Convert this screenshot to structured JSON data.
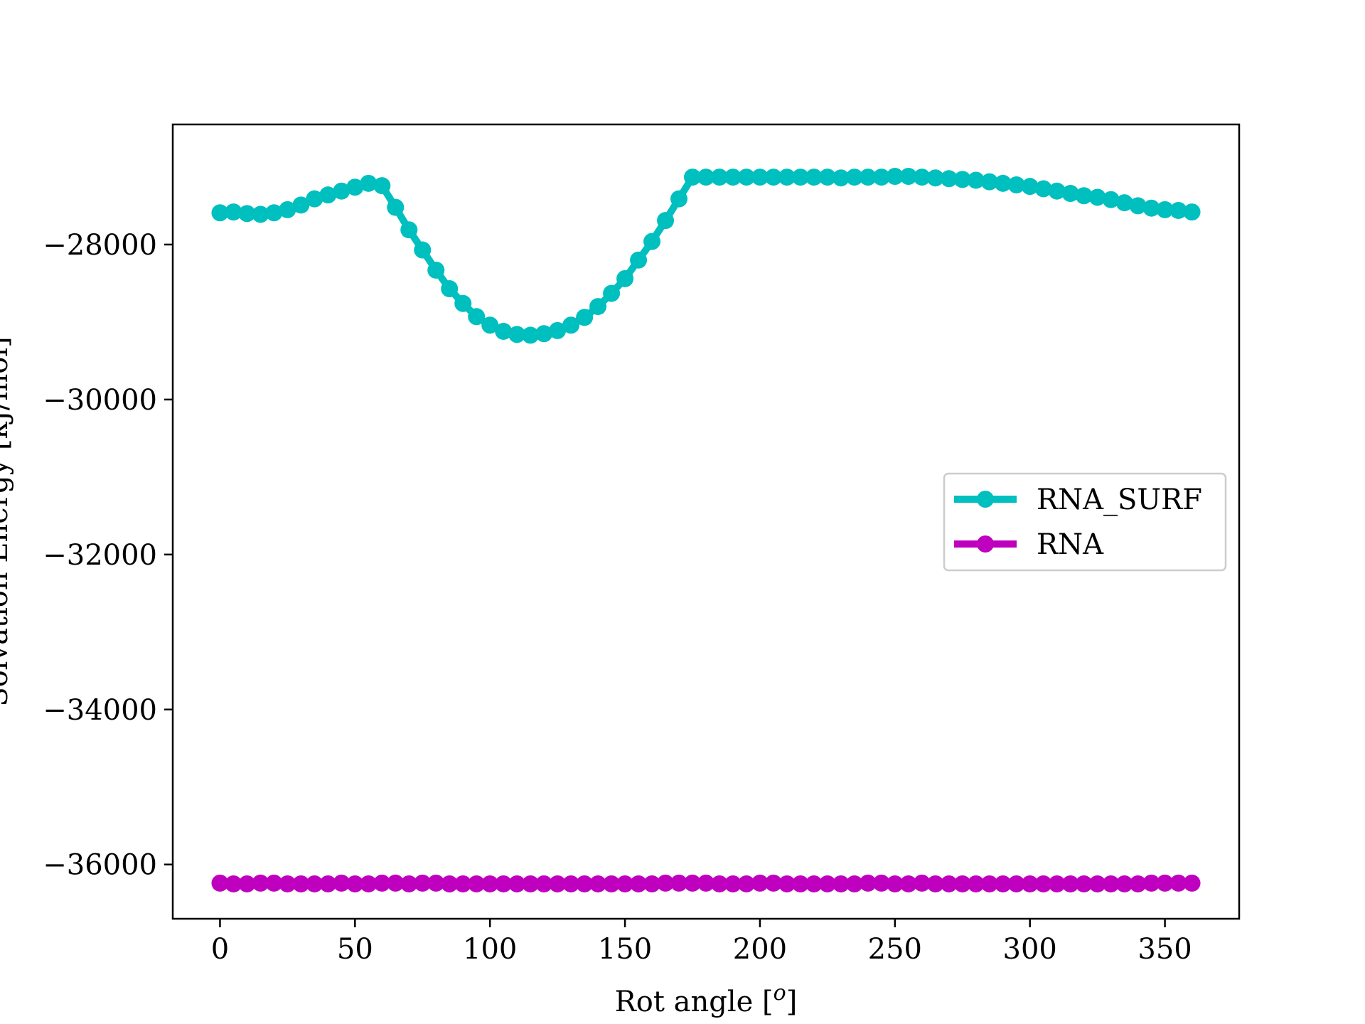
{
  "chart_data": {
    "type": "line",
    "title": "",
    "xlabel": "Rot angle [$^o$]",
    "xlabel_display": "Rot angle [o]",
    "ylabel": "Solvation Energy [kJ/mol]",
    "xlim": [
      -17.5,
      377.5
    ],
    "ylim": [
      -36700,
      -26450
    ],
    "xticks": [
      0,
      50,
      100,
      150,
      200,
      250,
      300,
      350
    ],
    "xtick_labels": [
      "0",
      "50",
      "100",
      "150",
      "200",
      "250",
      "300",
      "350"
    ],
    "yticks": [
      -28000,
      -30000,
      -32000,
      -34000,
      -36000
    ],
    "ytick_labels": [
      "−28000",
      "−30000",
      "−32000",
      "−34000",
      "−36000"
    ],
    "grid": false,
    "legend_position": "center-right",
    "x": [
      0,
      5,
      10,
      15,
      20,
      25,
      30,
      35,
      40,
      45,
      50,
      55,
      60,
      65,
      70,
      75,
      80,
      85,
      90,
      95,
      100,
      105,
      110,
      115,
      120,
      125,
      130,
      135,
      140,
      145,
      150,
      155,
      160,
      165,
      170,
      175,
      180,
      185,
      190,
      195,
      200,
      205,
      210,
      215,
      220,
      225,
      230,
      235,
      240,
      245,
      250,
      255,
      260,
      265,
      270,
      275,
      280,
      285,
      290,
      295,
      300,
      305,
      310,
      315,
      320,
      325,
      330,
      335,
      340,
      345,
      350,
      355,
      360
    ],
    "series": [
      {
        "name": "RNA_SURF",
        "color": "#00bfbf",
        "values": [
          -27590,
          -27580,
          -27600,
          -27610,
          -27590,
          -27550,
          -27490,
          -27410,
          -27360,
          -27310,
          -27260,
          -27210,
          -27240,
          -27520,
          -27810,
          -28070,
          -28330,
          -28570,
          -28760,
          -28930,
          -29040,
          -29120,
          -29160,
          -29170,
          -29150,
          -29110,
          -29040,
          -28940,
          -28800,
          -28630,
          -28440,
          -28200,
          -27960,
          -27690,
          -27410,
          -27130,
          -27130,
          -27130,
          -27130,
          -27130,
          -27130,
          -27130,
          -27130,
          -27130,
          -27130,
          -27130,
          -27140,
          -27130,
          -27130,
          -27130,
          -27120,
          -27120,
          -27130,
          -27140,
          -27150,
          -27160,
          -27170,
          -27190,
          -27210,
          -27230,
          -27250,
          -27280,
          -27310,
          -27340,
          -27370,
          -27390,
          -27420,
          -27460,
          -27500,
          -27530,
          -27550,
          -27560,
          -27580
        ]
      },
      {
        "name": "RNA",
        "color": "#bf00bf",
        "values": [
          -36240,
          -36250,
          -36250,
          -36240,
          -36240,
          -36250,
          -36250,
          -36250,
          -36250,
          -36240,
          -36250,
          -36250,
          -36240,
          -36240,
          -36250,
          -36240,
          -36240,
          -36250,
          -36250,
          -36250,
          -36250,
          -36250,
          -36250,
          -36250,
          -36250,
          -36250,
          -36250,
          -36250,
          -36250,
          -36250,
          -36250,
          -36250,
          -36250,
          -36240,
          -36240,
          -36240,
          -36240,
          -36250,
          -36250,
          -36250,
          -36240,
          -36240,
          -36250,
          -36250,
          -36250,
          -36250,
          -36250,
          -36250,
          -36240,
          -36240,
          -36250,
          -36250,
          -36240,
          -36250,
          -36250,
          -36250,
          -36250,
          -36250,
          -36250,
          -36250,
          -36250,
          -36250,
          -36250,
          -36250,
          -36250,
          -36250,
          -36250,
          -36250,
          -36250,
          -36240,
          -36240,
          -36240,
          -36240
        ]
      }
    ]
  }
}
